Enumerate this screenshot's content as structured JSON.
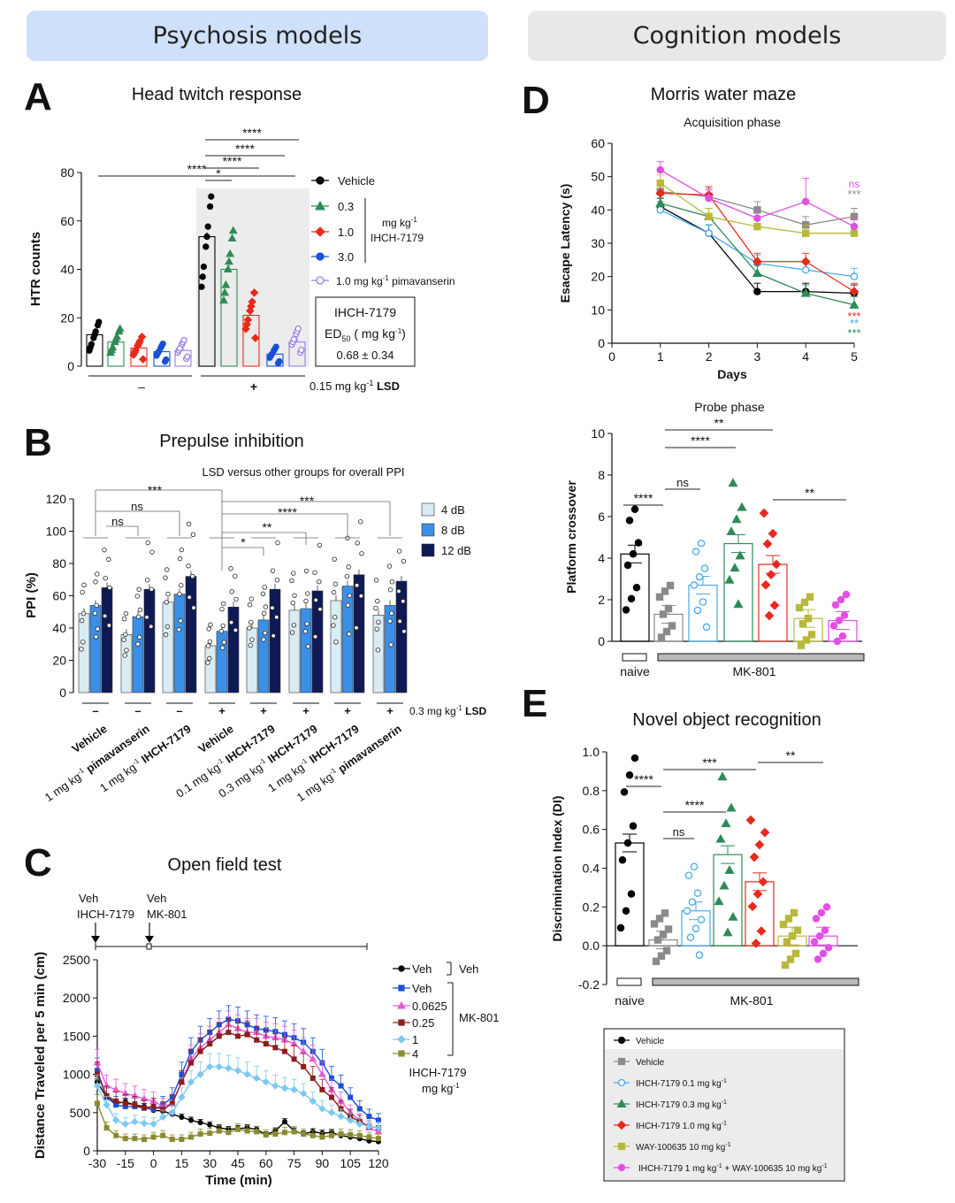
{
  "banners": {
    "left": "Psychosis models",
    "right": "Cognition models",
    "left_color": "#cfe0fa",
    "right_color": "#e8e8e8"
  },
  "colors": {
    "black": "#000000",
    "green": "#2e8b57",
    "red": "#e8291c",
    "blue": "#1a4fd8",
    "purple": "#9a7fe3",
    "lightblue": "#44aaee",
    "gray": "#8a8a8a",
    "olive": "#b8b83a",
    "magenta": "#e34ee3",
    "pale": "#d9ecf4",
    "mid": "#3c8fe6",
    "navy": "#0f1a55",
    "darkred": "#8b1a1a",
    "khaki": "#8a8a30",
    "sky": "#7cc8f0",
    "maroon": "#8b1e1e",
    "pink": "#e35ad6"
  },
  "chart_data": [
    {
      "panel": "A",
      "type": "bar",
      "title": "Head twitch response",
      "ylabel": "HTR counts",
      "ylim": [
        0,
        80
      ],
      "yticks": [
        "0",
        "20",
        "40",
        "60",
        "80"
      ],
      "series": [
        {
          "name": "Vehicle",
          "values": [
            13,
            53.5
          ]
        },
        {
          "name": "0.3",
          "values": [
            10,
            40
          ]
        },
        {
          "name": "1.0",
          "values": [
            7.5,
            21
          ]
        },
        {
          "name": "3.0",
          "values": [
            6,
            5
          ]
        },
        {
          "name": "1.0 mg kg-1 pimavanserin",
          "values": [
            6.5,
            10
          ]
        }
      ],
      "group_labels": [
        "–",
        "+"
      ],
      "group_caption": "0.15 mg kg",
      "group_caption_sup": "-1",
      "group_caption_bold": " LSD",
      "legend": [
        "Vehicle",
        "0.3",
        "1.0",
        "3.0",
        "1.0  mg kg",
        "-1",
        " pimavanserin"
      ],
      "legend_unit": [
        "mg kg",
        "-1",
        "IHCH-7179"
      ],
      "sig": [
        "****",
        "****",
        "****",
        "****",
        "*"
      ],
      "ed50_box": [
        "IHCH-7179",
        "ED",
        "50",
        " ( mg kg",
        "-1",
        ")",
        "0.68 ± 0.34"
      ]
    },
    {
      "panel": "B",
      "type": "bar",
      "title": "Prepulse inhibition",
      "subtitle": "LSD versus other groups for overall PPI",
      "ylabel": "PPI (%)",
      "ylim": [
        0,
        120
      ],
      "yticks": [
        "0",
        "20",
        "40",
        "60",
        "80",
        "100",
        "120"
      ],
      "series_names": [
        "4 dB",
        "8 dB",
        "12 dB"
      ],
      "groups": [
        {
          "label": "Vehicle",
          "lsd": "–",
          "values": [
            49,
            54,
            65
          ]
        },
        {
          "label": "1 mg kg-1 pimavanserin",
          "lsd": "–",
          "values": [
            36,
            47,
            64
          ]
        },
        {
          "label": "1 mg kg-1 IHCH-7179",
          "lsd": "–",
          "values": [
            56,
            61,
            72
          ]
        },
        {
          "label": "Vehicle",
          "lsd": "+",
          "values": [
            29,
            38,
            53
          ]
        },
        {
          "label": "0.1 mg kg-1 IHCH-7179",
          "lsd": "+",
          "values": [
            40,
            45,
            64
          ]
        },
        {
          "label": "0.3 mg kg-1 IHCH-7179",
          "lsd": "+",
          "values": [
            51,
            52,
            63
          ]
        },
        {
          "label": "1 mg kg-1 IHCH-7179",
          "lsd": "+",
          "values": [
            57,
            66,
            73
          ]
        },
        {
          "label": "1 mg kg-1 pimavanserin",
          "lsd": "+",
          "values": [
            48,
            54,
            69
          ]
        }
      ],
      "xlabels": [
        {
          "pre": "Vehicle",
          "sup": "",
          "post": "",
          "bold": ""
        },
        {
          "pre": "1 mg kg",
          "sup": "-1",
          "post": " ",
          "bold": "pimavanserin"
        },
        {
          "pre": "1 mg kg",
          "sup": "-1",
          "post": " ",
          "bold": "IHCH-7179"
        },
        {
          "pre": "Vehicle",
          "sup": "",
          "post": "",
          "bold": ""
        },
        {
          "pre": "0.1 mg kg",
          "sup": "-1",
          "post": " ",
          "bold": "IHCH-7179"
        },
        {
          "pre": "0.3 mg kg",
          "sup": "-1",
          "post": " ",
          "bold": "IHCH-7179"
        },
        {
          "pre": "1 mg kg",
          "sup": "-1",
          "post": " ",
          "bold": "IHCH-7179"
        },
        {
          "pre": "1 mg kg",
          "sup": "-1",
          "post": " ",
          "bold": "pimavanserin"
        }
      ],
      "lsd_caption": "0.3 mg kg",
      "lsd_sup": "-1",
      "lsd_bold": " LSD",
      "sig": [
        "***",
        "ns",
        "ns",
        "***",
        "****",
        "**",
        "*"
      ]
    },
    {
      "panel": "C",
      "type": "line",
      "title": "Open field test",
      "xlabel": "Time (min)",
      "ylabel": "Distance Traveled per 5 min (cm)",
      "xlim": [
        -30,
        120
      ],
      "ylim": [
        0,
        2500
      ],
      "xticks": [
        "-30",
        "-15",
        "0",
        "15",
        "30",
        "45",
        "60",
        "75",
        "90",
        "105",
        "120"
      ],
      "yticks": [
        "0",
        "500",
        "1000",
        "1500",
        "2000",
        "2500"
      ],
      "x": [
        -30,
        -25,
        -20,
        -15,
        -10,
        -5,
        0,
        5,
        10,
        15,
        20,
        25,
        30,
        35,
        40,
        45,
        50,
        55,
        60,
        65,
        70,
        75,
        80,
        85,
        90,
        95,
        100,
        105,
        110,
        115,
        120
      ],
      "series": [
        {
          "name": "Veh",
          "group": "Veh",
          "values": [
            900,
            700,
            620,
            640,
            600,
            580,
            530,
            520,
            480,
            440,
            400,
            370,
            340,
            300,
            280,
            290,
            300,
            280,
            210,
            260,
            380,
            260,
            220,
            250,
            230,
            240,
            200,
            180,
            160,
            130,
            120
          ]
        },
        {
          "name": "Veh",
          "group": "MK-801",
          "values": [
            1050,
            700,
            600,
            580,
            580,
            560,
            540,
            600,
            700,
            1000,
            1300,
            1450,
            1550,
            1650,
            1720,
            1700,
            1650,
            1600,
            1580,
            1560,
            1520,
            1480,
            1420,
            1300,
            1150,
            950,
            850,
            700,
            550,
            450,
            400
          ]
        },
        {
          "name": "0.0625",
          "group": "MK-801",
          "values": [
            1150,
            850,
            800,
            750,
            720,
            680,
            650,
            580,
            620,
            900,
            1200,
            1350,
            1450,
            1550,
            1650,
            1600,
            1550,
            1550,
            1500,
            1480,
            1450,
            1400,
            1300,
            1200,
            1000,
            800,
            650,
            500,
            400,
            300,
            250
          ]
        },
        {
          "name": "0.25",
          "group": "MK-801",
          "values": [
            1000,
            720,
            650,
            620,
            600,
            560,
            580,
            540,
            620,
            900,
            1150,
            1300,
            1400,
            1500,
            1550,
            1500,
            1520,
            1450,
            1400,
            1350,
            1300,
            1200,
            1100,
            950,
            800,
            700,
            550,
            450,
            380,
            320,
            300
          ]
        },
        {
          "name": "1",
          "group": "MK-801",
          "values": [
            850,
            600,
            400,
            350,
            380,
            360,
            350,
            440,
            500,
            700,
            900,
            1000,
            1100,
            1100,
            1080,
            1050,
            1000,
            950,
            900,
            850,
            820,
            800,
            750,
            650,
            550,
            500,
            450,
            400,
            350,
            320,
            300
          ]
        },
        {
          "name": "4",
          "group": "MK-801",
          "values": [
            620,
            300,
            200,
            160,
            160,
            150,
            180,
            200,
            150,
            150,
            180,
            220,
            230,
            260,
            240,
            280,
            260,
            250,
            210,
            220,
            240,
            250,
            220,
            200,
            180,
            200,
            220,
            210,
            200,
            180,
            160
          ]
        }
      ],
      "legend_groups": [
        "Veh",
        "MK-801"
      ],
      "legend_caption": [
        "IHCH-7179",
        "mg kg",
        "-1"
      ],
      "timeline": {
        "lines1": [
          "Veh",
          "IHCH-7179"
        ],
        "lines2": [
          "Veh",
          "MK-801"
        ]
      }
    },
    {
      "panel": "D",
      "type": "line",
      "title": "Morris water maze",
      "subtitle": "Acquisition phase",
      "xlabel": "Days",
      "ylabel": "Esacape Latency (s)",
      "xlim": [
        0,
        5
      ],
      "ylim": [
        0,
        60
      ],
      "xticks": [
        "0",
        "1",
        "2",
        "3",
        "4",
        "5"
      ],
      "yticks": [
        "0",
        "10",
        "20",
        "30",
        "40",
        "50",
        "60"
      ],
      "x": [
        1,
        2,
        3,
        4,
        5
      ],
      "series": [
        {
          "name": "Vehicle naive",
          "values": [
            41,
            33,
            15.5,
            15.5,
            15
          ]
        },
        {
          "name": "Vehicle MK-801",
          "values": [
            45.5,
            44,
            40,
            35.5,
            38
          ]
        },
        {
          "name": "IHCH-7179 0.1",
          "values": [
            40,
            33,
            24,
            22,
            20
          ]
        },
        {
          "name": "IHCH-7179 0.3",
          "values": [
            42,
            38,
            21,
            15,
            11.5
          ]
        },
        {
          "name": "IHCH-7179 1.0",
          "values": [
            45,
            44.5,
            24.5,
            24.5,
            15.5
          ]
        },
        {
          "name": "WAY-100635",
          "values": [
            48,
            38,
            35,
            33,
            33
          ]
        },
        {
          "name": "IHCH-7179 + WAY-100635",
          "values": [
            52,
            43.5,
            37.5,
            42.5,
            35
          ]
        }
      ],
      "sig_top": [
        "ns",
        "***"
      ],
      "sig_bottom": [
        "***",
        "**",
        "***"
      ]
    },
    {
      "panel": "D-probe",
      "type": "bar",
      "title": "Probe phase",
      "ylabel": "Platform crossover",
      "ylim": [
        0,
        10
      ],
      "yticks": [
        "0",
        "2",
        "4",
        "6",
        "8",
        "10"
      ],
      "values": [
        4.2,
        1.3,
        2.7,
        4.7,
        3.7,
        1.1,
        1.0
      ],
      "group_labels": [
        "naive",
        "MK-801"
      ],
      "sig": [
        "****",
        "ns",
        "****",
        "**",
        "**"
      ]
    },
    {
      "panel": "E",
      "type": "bar",
      "title": "Novel object recognition",
      "ylabel": "Discrimination Index (DI)",
      "ylim": [
        -0.2,
        1.0
      ],
      "yticks": [
        "-0.2",
        "0.0",
        "0.2",
        "0.4",
        "0.6",
        "0.8",
        "1.0"
      ],
      "values": [
        0.53,
        0.03,
        0.18,
        0.47,
        0.33,
        0.05,
        0.05
      ],
      "group_labels": [
        "naive",
        "MK-801"
      ],
      "sig": [
        "****",
        "***",
        "**",
        "ns",
        "****"
      ]
    }
  ],
  "panel_letters": [
    "A",
    "B",
    "C",
    "D",
    "E"
  ],
  "legend_box": [
    {
      "label": "Vehicle",
      "unit": "",
      "sup": "",
      "post": "",
      "unit2": "",
      "sup2": ""
    },
    {
      "label": "Vehicle",
      "unit": "",
      "sup": "",
      "post": "",
      "unit2": "",
      "sup2": ""
    },
    {
      "label": "IHCH-7179 0.1 ",
      "unit": "mg kg",
      "sup": "-1",
      "post": "",
      "unit2": "",
      "sup2": ""
    },
    {
      "label": "IHCH-7179 0.3 ",
      "unit": "mg kg",
      "sup": "-1",
      "post": "",
      "unit2": "",
      "sup2": ""
    },
    {
      "label": "IHCH-7179 1.0 ",
      "unit": "mg kg",
      "sup": "-1",
      "post": "",
      "unit2": "",
      "sup2": ""
    },
    {
      "label": "WAY-100635 10 ",
      "unit": "mg kg",
      "sup": "-1",
      "post": "",
      "unit2": "",
      "sup2": ""
    },
    {
      "label": "IHCH-7179 1 ",
      "unit": "mg kg",
      "sup": "-1",
      "post": " + WAY-100635 10 ",
      "unit2": "mg kg",
      "sup2": "-1"
    }
  ]
}
